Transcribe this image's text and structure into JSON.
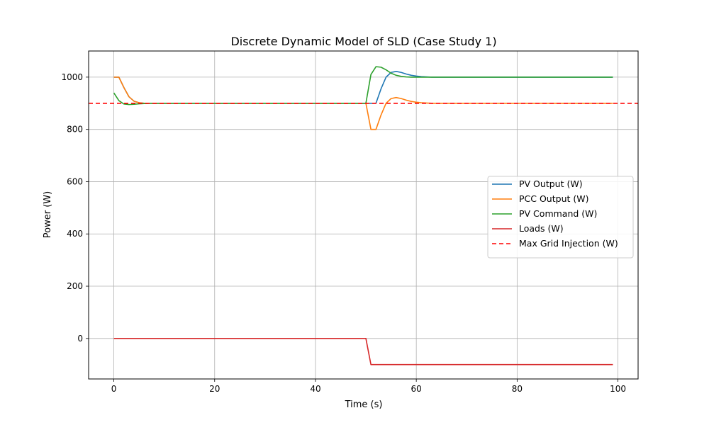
{
  "chart_data": {
    "type": "line",
    "title": "Discrete Dynamic Model of SLD (Case Study 1)",
    "xlabel": "Time (s)",
    "ylabel": "Power (W)",
    "xlim": [
      -5,
      104
    ],
    "ylim": [
      -155,
      1100
    ],
    "xticks": [
      0,
      20,
      40,
      60,
      80,
      100
    ],
    "yticks": [
      0,
      200,
      400,
      600,
      800,
      1000
    ],
    "grid": true,
    "legend_position": "center-right",
    "series": [
      {
        "name": "PV Output (W)",
        "color": "#1f77b4",
        "style": "solid",
        "x": [
          0,
          1,
          2,
          3,
          4,
          5,
          6,
          7,
          50,
          51,
          52,
          53,
          54,
          55,
          56,
          57,
          58,
          59,
          60,
          61,
          62,
          63,
          65,
          99
        ],
        "y": [
          1000,
          1000,
          960,
          925,
          908,
          902,
          900,
          900,
          900,
          900,
          900,
          955,
          1000,
          1018,
          1022,
          1018,
          1012,
          1007,
          1004,
          1002,
          1001,
          1000,
          1000,
          1000
        ]
      },
      {
        "name": "PCC Output (W)",
        "color": "#ff7f0e",
        "style": "solid",
        "x": [
          0,
          1,
          2,
          3,
          4,
          5,
          6,
          7,
          50,
          51,
          52,
          53,
          54,
          55,
          56,
          57,
          58,
          59,
          60,
          61,
          62,
          63,
          65,
          99
        ],
        "y": [
          1000,
          1000,
          960,
          925,
          908,
          902,
          900,
          900,
          900,
          800,
          800,
          855,
          900,
          918,
          922,
          918,
          912,
          907,
          904,
          902,
          901,
          900,
          900,
          900
        ]
      },
      {
        "name": "PV Command (W)",
        "color": "#2ca02c",
        "style": "solid",
        "x": [
          0,
          1,
          2,
          3,
          4,
          5,
          6,
          7,
          8,
          50,
          51,
          52,
          53,
          54,
          55,
          56,
          57,
          58,
          59,
          60,
          62,
          65,
          99
        ],
        "y": [
          940,
          910,
          897,
          895,
          896,
          898,
          899,
          900,
          900,
          900,
          1010,
          1040,
          1038,
          1028,
          1015,
          1007,
          1003,
          1001,
          1000,
          1000,
          1000,
          1000,
          1000
        ]
      },
      {
        "name": "Loads (W)",
        "color": "#d62728",
        "style": "solid",
        "x": [
          0,
          50,
          51,
          99
        ],
        "y": [
          0,
          0,
          -100,
          -100
        ]
      },
      {
        "name": "Max Grid Injection (W)",
        "color": "#ff0000",
        "style": "dashed",
        "x": [
          -5,
          104
        ],
        "y": [
          900,
          900
        ]
      }
    ]
  }
}
